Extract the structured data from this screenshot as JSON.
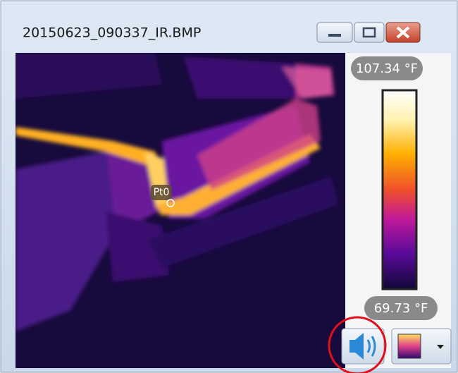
{
  "window": {
    "title": "20150623_090337_IR.BMP"
  },
  "scale": {
    "max_label": "107.34 °F",
    "min_label": "69.73 °F"
  },
  "image": {
    "point_label": "Pt0"
  }
}
